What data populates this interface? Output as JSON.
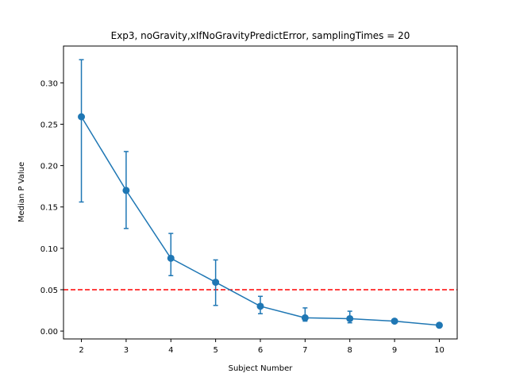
{
  "chart_data": {
    "type": "line",
    "title": "Exp3, noGravity,xIfNoGravityPredictError, samplingTimes = 20",
    "xlabel": "Subject Number",
    "ylabel": "Median P Value",
    "x": [
      2,
      3,
      4,
      5,
      6,
      7,
      8,
      9,
      10
    ],
    "series": [
      {
        "values": [
          0.259,
          0.17,
          0.088,
          0.059,
          0.03,
          0.016,
          0.015,
          0.012,
          0.007
        ],
        "err_low": [
          0.156,
          0.124,
          0.067,
          0.031,
          0.021,
          0.012,
          0.01,
          0.012,
          0.007
        ],
        "err_high": [
          0.328,
          0.217,
          0.118,
          0.086,
          0.042,
          0.028,
          0.024,
          0.012,
          0.007
        ],
        "color": "#1f77b4",
        "marker": "circle"
      }
    ],
    "reference_line": {
      "y": 0.05,
      "color": "#ff0000",
      "style": "dashed"
    },
    "xlim": [
      1.6,
      10.4
    ],
    "ylim": [
      -0.0095,
      0.3445
    ],
    "xticks": [
      2,
      3,
      4,
      5,
      6,
      7,
      8,
      9,
      10
    ],
    "yticks": [
      0.0,
      0.05,
      0.1,
      0.15,
      0.2,
      0.25,
      0.3
    ],
    "ytick_labels": [
      "0.00",
      "0.05",
      "0.10",
      "0.15",
      "0.20",
      "0.25",
      "0.30"
    ],
    "grid": false,
    "legend": false
  }
}
